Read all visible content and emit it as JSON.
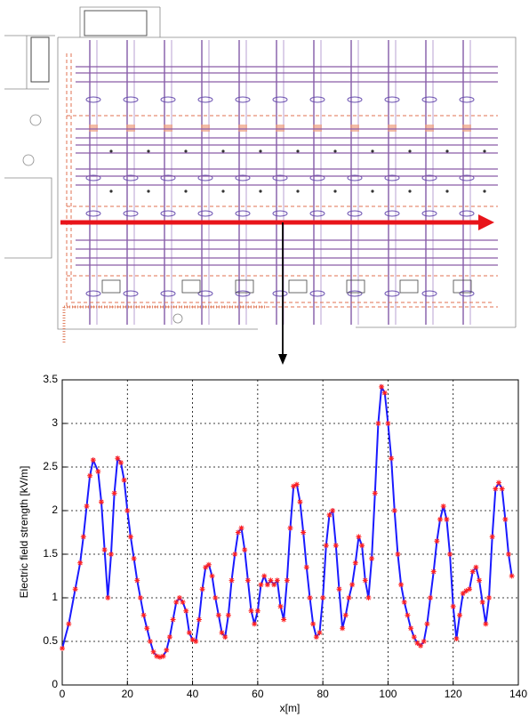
{
  "chart_data": {
    "type": "line",
    "xlabel": "x[m]",
    "ylabel": "Electric field strength [kV/m]",
    "x": [
      0,
      2,
      4,
      5.5,
      6.5,
      7.5,
      8.5,
      9.5,
      11,
      12,
      13,
      14,
      15,
      16,
      17,
      18,
      19,
      20,
      21,
      22,
      23,
      24,
      25,
      26,
      27,
      28,
      29,
      30,
      31,
      32,
      33,
      34,
      35,
      36,
      37,
      38,
      39,
      40,
      41,
      42,
      43,
      44,
      45,
      46,
      47,
      48,
      49,
      50,
      51,
      52,
      53,
      54,
      55,
      56,
      57,
      58,
      59,
      60,
      61,
      62,
      63,
      64,
      65,
      66,
      67,
      68,
      69,
      70,
      71,
      72,
      73,
      74,
      75,
      76,
      77,
      78,
      79,
      80,
      81,
      82,
      83,
      84,
      85,
      86,
      87,
      88,
      89,
      90,
      91,
      92,
      93,
      94,
      95,
      96,
      97,
      98,
      99,
      100,
      101,
      102,
      103,
      104,
      105,
      106,
      107,
      108,
      109,
      110,
      111,
      112,
      113,
      114,
      115,
      116,
      117,
      118,
      119,
      120,
      121,
      122,
      123,
      124,
      125,
      126,
      127,
      128,
      129,
      130,
      131,
      132,
      133,
      134,
      135,
      136,
      137,
      138
    ],
    "series": [
      {
        "color": "#1a1aff",
        "marker_color": "#ff2020",
        "values": [
          0.42,
          0.7,
          1.1,
          1.4,
          1.7,
          2.05,
          2.4,
          2.58,
          2.45,
          2.1,
          1.55,
          1.0,
          1.5,
          2.2,
          2.6,
          2.55,
          2.35,
          2.0,
          1.7,
          1.45,
          1.2,
          1.0,
          0.8,
          0.65,
          0.5,
          0.38,
          0.33,
          0.32,
          0.33,
          0.4,
          0.55,
          0.75,
          0.95,
          1.0,
          0.95,
          0.85,
          0.6,
          0.52,
          0.5,
          0.75,
          1.1,
          1.35,
          1.38,
          1.25,
          1.0,
          0.8,
          0.6,
          0.55,
          0.8,
          1.2,
          1.5,
          1.75,
          1.8,
          1.55,
          1.2,
          0.85,
          0.7,
          0.85,
          1.15,
          1.25,
          1.15,
          1.2,
          1.15,
          1.2,
          0.9,
          0.75,
          1.2,
          1.8,
          2.28,
          2.3,
          2.1,
          1.75,
          1.35,
          1.0,
          0.7,
          0.55,
          0.6,
          1.0,
          1.6,
          1.95,
          2.0,
          1.6,
          1.1,
          0.65,
          0.8,
          1.0,
          1.15,
          1.4,
          1.7,
          1.6,
          1.2,
          1.0,
          1.45,
          2.2,
          3.0,
          3.42,
          3.35,
          3.0,
          2.6,
          2.0,
          1.5,
          1.15,
          0.95,
          0.8,
          0.65,
          0.55,
          0.48,
          0.45,
          0.5,
          0.7,
          1.0,
          1.3,
          1.65,
          1.9,
          2.05,
          1.9,
          1.5,
          0.9,
          0.53,
          0.8,
          1.05,
          1.08,
          1.1,
          1.3,
          1.35,
          1.2,
          0.95,
          0.7,
          1.0,
          1.7,
          2.25,
          2.32,
          2.25,
          1.9,
          1.5,
          1.25
        ]
      }
    ],
    "xlim": [
      0,
      140
    ],
    "xticks": [
      0,
      20,
      40,
      60,
      80,
      100,
      120,
      140
    ],
    "ylim": [
      0,
      3.5
    ],
    "yticks": [
      0,
      0.5,
      1,
      1.5,
      2,
      2.5,
      3,
      3.5
    ],
    "grid": true
  }
}
